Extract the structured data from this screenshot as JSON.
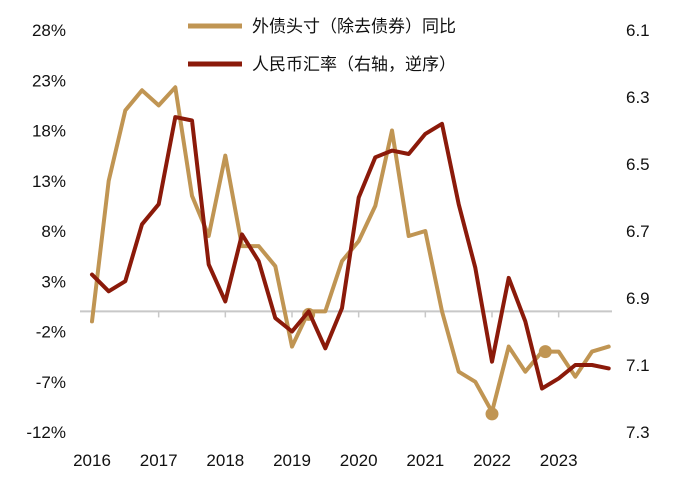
{
  "chart_data": {
    "type": "line",
    "title": "",
    "xlabel": "",
    "ylabel": "",
    "x_ticks": [
      "2016",
      "2017",
      "2018",
      "2019",
      "2020",
      "2021",
      "2022",
      "2023"
    ],
    "x_range": [
      2016.0,
      2023.8
    ],
    "left_axis": {
      "ticks": [
        "28%",
        "23%",
        "18%",
        "13%",
        "8%",
        "3%",
        "-2%",
        "-7%",
        "-12%"
      ],
      "range": [
        -12,
        28
      ],
      "reference_line": 0
    },
    "right_axis": {
      "ticks": [
        "6.1",
        "6.3",
        "6.5",
        "6.7",
        "6.9",
        "7.1",
        "7.3"
      ],
      "range": [
        6.1,
        7.3
      ],
      "inverted": true
    },
    "legend": {
      "position": "top"
    },
    "series": [
      {
        "name": "外债头寸（除去债券）同比",
        "axis": "left",
        "color": "#c09553",
        "x": [
          2016.0,
          2016.25,
          2016.5,
          2016.75,
          2017.0,
          2017.25,
          2017.5,
          2017.75,
          2018.0,
          2018.25,
          2018.5,
          2018.75,
          2019.0,
          2019.25,
          2019.5,
          2019.75,
          2020.0,
          2020.25,
          2020.5,
          2020.75,
          2021.0,
          2021.25,
          2021.5,
          2021.75,
          2022.0,
          2022.25,
          2022.5,
          2022.75,
          2023.0,
          2023.25,
          2023.5,
          2023.75
        ],
        "values": [
          -1,
          13,
          20,
          22,
          20.5,
          22.3,
          11.5,
          7.5,
          15.5,
          6.5,
          6.5,
          4.5,
          -3.5,
          0,
          0,
          5,
          7,
          10.5,
          18,
          7.5,
          8,
          0,
          -6,
          -7,
          -10,
          -3.5,
          -6,
          -4,
          -4,
          -6.5,
          -4,
          -3.5
        ],
        "markers": [
          {
            "x": 2019.25,
            "y": -0.3
          },
          {
            "x": 2022.0,
            "y": -10.2
          },
          {
            "x": 2022.8,
            "y": -4.0
          }
        ]
      },
      {
        "name": "人民币汇率（右轴，逆序）",
        "axis": "right",
        "color": "#8b1a0a",
        "x": [
          2016.0,
          2016.25,
          2016.5,
          2016.75,
          2017.0,
          2017.25,
          2017.5,
          2017.75,
          2018.0,
          2018.25,
          2018.5,
          2018.75,
          2019.0,
          2019.25,
          2019.5,
          2019.75,
          2020.0,
          2020.25,
          2020.5,
          2020.75,
          2021.0,
          2021.25,
          2021.5,
          2021.75,
          2022.0,
          2022.25,
          2022.5,
          2022.75,
          2023.0,
          2023.25,
          2023.5,
          2023.75
        ],
        "values": [
          6.83,
          6.88,
          6.85,
          6.68,
          6.62,
          6.36,
          6.37,
          6.8,
          6.91,
          6.71,
          6.79,
          6.96,
          7.0,
          6.94,
          7.05,
          6.93,
          6.6,
          6.48,
          6.46,
          6.47,
          6.41,
          6.38,
          6.62,
          6.81,
          7.09,
          6.84,
          6.97,
          7.17,
          7.14,
          7.1,
          7.1,
          7.11
        ]
      }
    ]
  }
}
